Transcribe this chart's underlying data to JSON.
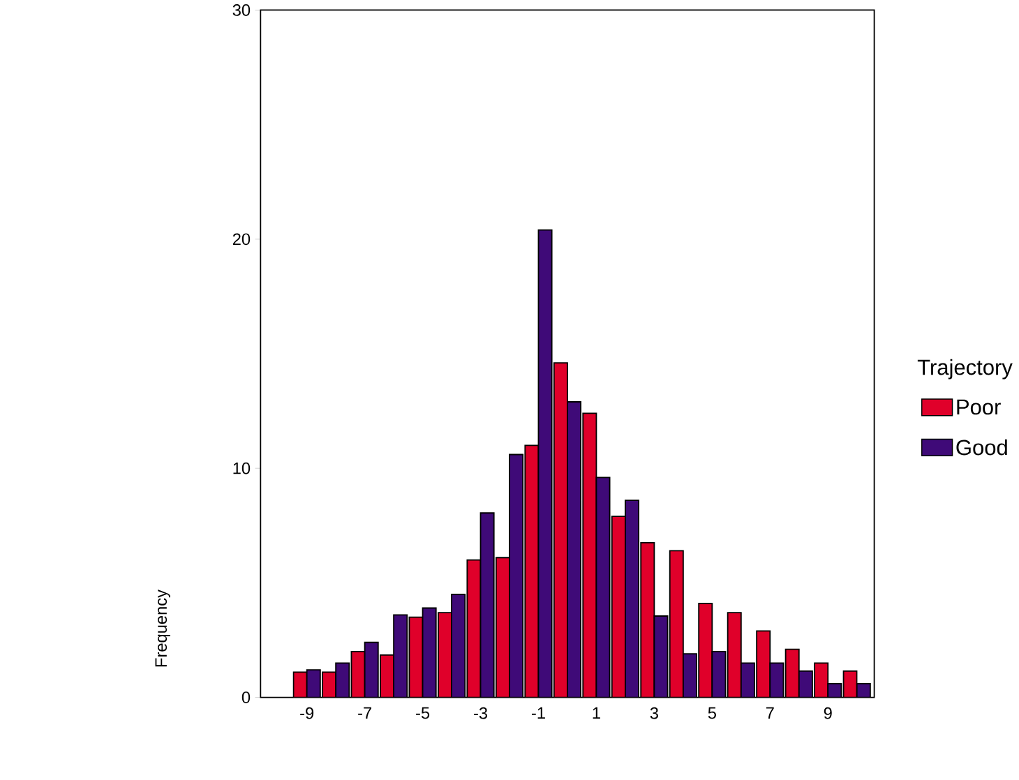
{
  "chart_data": {
    "type": "bar",
    "ylabel": "Frequency",
    "legend_title": "Trajectory",
    "categories": [
      "-9",
      null,
      "-7",
      null,
      "-5",
      null,
      "-3",
      null,
      "-1",
      null,
      "1",
      null,
      "3",
      null,
      "5",
      null,
      "7",
      null,
      "9",
      null
    ],
    "series": [
      {
        "name": "Poor",
        "color": "#e0002a",
        "values": [
          1.1,
          1.1,
          2.0,
          1.85,
          3.5,
          3.7,
          6.0,
          6.1,
          11.0,
          14.6,
          12.4,
          7.9,
          6.75,
          6.4,
          4.1,
          3.7,
          2.9,
          2.1,
          1.5,
          1.15
        ]
      },
      {
        "name": "Good",
        "color": "#3f0a78",
        "values": [
          1.2,
          1.5,
          2.4,
          3.6,
          3.9,
          4.5,
          8.05,
          10.6,
          20.4,
          12.9,
          9.6,
          8.6,
          3.55,
          1.9,
          2.0,
          1.5,
          1.5,
          1.15,
          0.6,
          0.6
        ]
      }
    ],
    "ylim": [
      0,
      30
    ],
    "yticks": [
      0,
      10,
      20,
      30
    ],
    "legend": "right"
  }
}
